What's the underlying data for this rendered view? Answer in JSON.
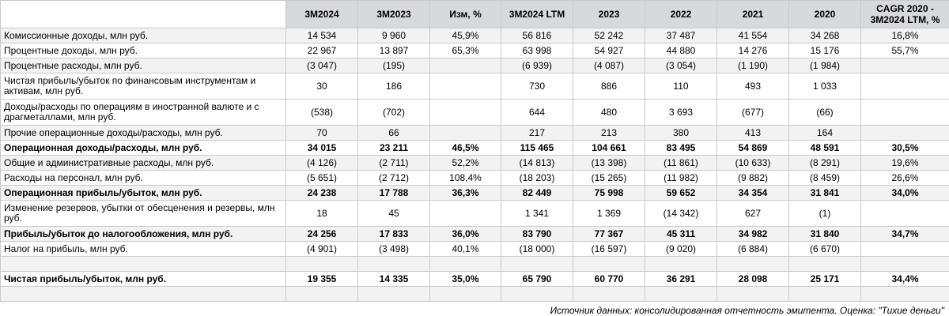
{
  "table": {
    "headers": [
      "",
      "3M2024",
      "3M2023",
      "Изм, %",
      "3M2024 LTM",
      "2023",
      "2022",
      "2021",
      "2020",
      "CAGR 2020 - 3M2024 LTM, %"
    ],
    "rows": [
      {
        "label": "Комиссионные доходы, млн руб.",
        "values": [
          "14 534",
          "9 960",
          "45,9%",
          "56 816",
          "52 242",
          "37 487",
          "41 554",
          "34 268",
          "16,8%"
        ],
        "bold": false,
        "shade": true
      },
      {
        "label": "Процентные доходы, млн руб.",
        "values": [
          "22 967",
          "13 897",
          "65,3%",
          "63 998",
          "54 927",
          "44 880",
          "14 276",
          "15 176",
          "55,7%"
        ],
        "bold": false,
        "shade": false
      },
      {
        "label": "Процентные расходы, млн руб.",
        "values": [
          "(3 047)",
          "(195)",
          "",
          "(6 939)",
          "(4 087)",
          "(3 054)",
          "(1 190)",
          "(1 984)",
          ""
        ],
        "bold": false,
        "shade": true
      },
      {
        "label": "Чистая прибыль/убыток по финансовым инструментам и активам, млн руб.",
        "values": [
          "30",
          "186",
          "",
          "730",
          "886",
          "110",
          "493",
          "1 033",
          ""
        ],
        "bold": false,
        "shade": false
      },
      {
        "label": "Доходы/расходы по операциям в иностранной валюте и с драгметаллами, млн руб.",
        "values": [
          "(538)",
          "(702)",
          "",
          "644",
          "480",
          "3 693",
          "(677)",
          "(66)",
          ""
        ],
        "bold": false,
        "shade": false
      },
      {
        "label": "Прочие операционные доходы/расходы, млн руб.",
        "values": [
          "70",
          "66",
          "",
          "217",
          "213",
          "380",
          "413",
          "164",
          ""
        ],
        "bold": false,
        "shade": true
      },
      {
        "label": "Операционная доходы/расходы, млн руб.",
        "values": [
          "34 015",
          "23 211",
          "46,5%",
          "115 465",
          "104 661",
          "83 495",
          "54 869",
          "48 591",
          "30,5%"
        ],
        "bold": true,
        "shade": false
      },
      {
        "label": "Общие и административные расходы, млн руб.",
        "values": [
          "(4 126)",
          "(2 711)",
          "52,2%",
          "(14 813)",
          "(13 398)",
          "(11 861)",
          "(10 633)",
          "(8 291)",
          "19,6%"
        ],
        "bold": false,
        "shade": true
      },
      {
        "label": "Расходы на персонал, млн руб.",
        "values": [
          "(5 651)",
          "(2 712)",
          "108,4%",
          "(18 203)",
          "(15 265)",
          "(11 982)",
          "(9 882)",
          "(8 459)",
          "26,6%"
        ],
        "bold": false,
        "shade": false
      },
      {
        "label": "Операционная прибыль/убыток, млн руб.",
        "values": [
          "24 238",
          "17 788",
          "36,3%",
          "82 449",
          "75 998",
          "59 652",
          "34 354",
          "31 841",
          "34,0%"
        ],
        "bold": true,
        "shade": true
      },
      {
        "label": "Изменение резервов, убытки от обесценения и резервы, млн руб.",
        "values": [
          "18",
          "45",
          "",
          "1 341",
          "1 369",
          "(14 342)",
          "627",
          "(1)",
          ""
        ],
        "bold": false,
        "shade": false
      },
      {
        "label": "Прибыль/убыток до налогообложения, млн руб.",
        "values": [
          "24 256",
          "17 833",
          "36,0%",
          "83 790",
          "77 367",
          "45 311",
          "34 982",
          "31 840",
          "34,7%"
        ],
        "bold": true,
        "shade": true
      },
      {
        "label": "Налог на прибыль, млн руб.",
        "values": [
          "(4 901)",
          "(3 498)",
          "40,1%",
          "(18 000)",
          "(16 597)",
          "(9 020)",
          "(6 884)",
          "(6 670)",
          ""
        ],
        "bold": false,
        "shade": false
      },
      {
        "label": "",
        "values": [
          "",
          "",
          "",
          "",
          "",
          "",
          "",
          "",
          ""
        ],
        "bold": false,
        "shade": true
      },
      {
        "label": "Чистая прибыль/убыток, млн руб.",
        "values": [
          "19 355",
          "14 335",
          "35,0%",
          "65 790",
          "60 770",
          "36 291",
          "28 098",
          "25 171",
          "34,4%"
        ],
        "bold": true,
        "shade": false
      },
      {
        "label": "",
        "values": [
          "",
          "",
          "",
          "",
          "",
          "",
          "",
          "",
          ""
        ],
        "bold": false,
        "shade": true
      }
    ]
  },
  "footer": {
    "source": "Источник данных: консолидированная отчетность эмитента. Оценка: \"Тихие деньги\""
  }
}
